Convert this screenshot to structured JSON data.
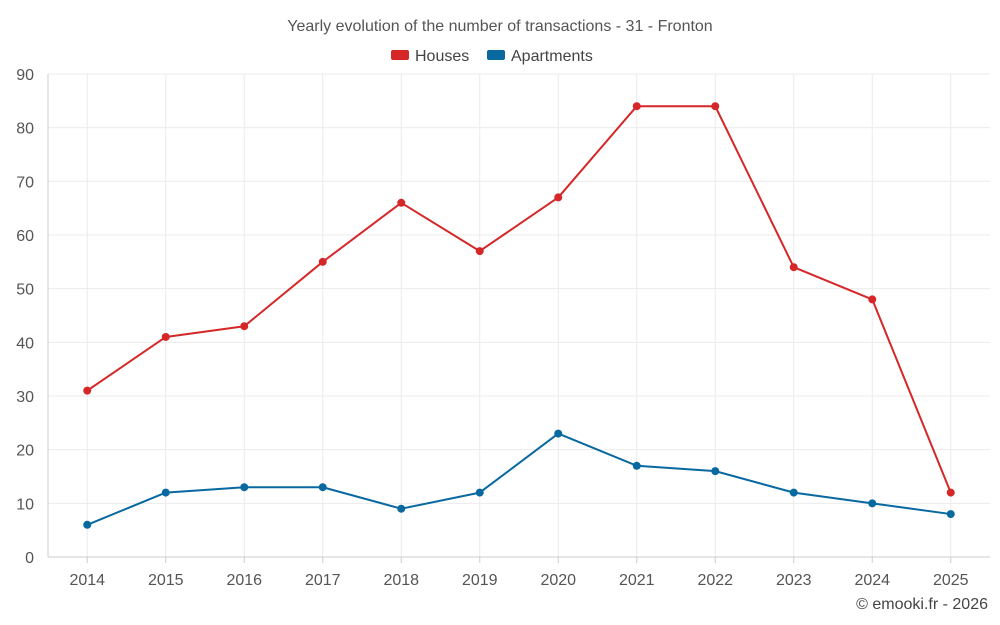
{
  "chart_data": {
    "type": "line",
    "title": "Yearly evolution of the number of transactions - 31 - Fronton",
    "xlabel": "",
    "ylabel": "",
    "categories": [
      "2014",
      "2015",
      "2016",
      "2017",
      "2018",
      "2019",
      "2020",
      "2021",
      "2022",
      "2023",
      "2024",
      "2025"
    ],
    "ylim": [
      0,
      90
    ],
    "yticks": [
      0,
      10,
      20,
      30,
      40,
      50,
      60,
      70,
      80,
      90
    ],
    "grid": true,
    "legend_position": "top-center",
    "series": [
      {
        "name": "Houses",
        "color": "#d62728",
        "values": [
          31,
          41,
          43,
          55,
          66,
          57,
          67,
          84,
          84,
          54,
          48,
          12
        ]
      },
      {
        "name": "Apartments",
        "color": "#0868a0",
        "values": [
          6,
          12,
          13,
          13,
          9,
          12,
          23,
          17,
          16,
          12,
          10,
          8
        ]
      }
    ]
  },
  "credit": "© emooki.fr - 2026"
}
